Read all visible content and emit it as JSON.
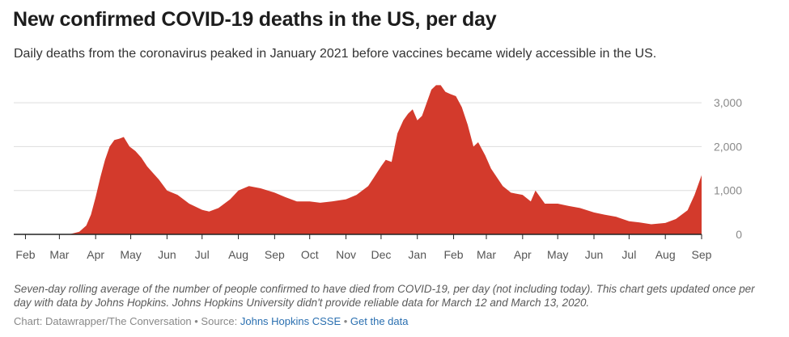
{
  "title": "New confirmed COVID-19 deaths in the US, per day",
  "subtitle": "Daily deaths from the coronavirus peaked in January 2021 before vaccines became widely accessible in the US.",
  "notes": "Seven-day rolling average of the number of people confirmed to have died from COVID-19, per day (not including today). This chart gets updated once per day with data by Johns Hopkins. Johns Hopkins University didn't provide reliable data for March 12 and March 13, 2020.",
  "credit": {
    "prefix": "Chart: Datawrapper/The Conversation • Source: ",
    "source_link": "Johns Hopkins CSSE",
    "separator": " • ",
    "data_link": "Get the data"
  },
  "colors": {
    "area": "#d33a2c",
    "grid": "#dddddd",
    "axis": "#222222",
    "tick_text": "#8a8a8a"
  },
  "chart_data": {
    "type": "area",
    "xlabel": "",
    "ylabel": "",
    "y_ticks": [
      0,
      1000,
      2000,
      3000
    ],
    "y_tick_labels": [
      "0",
      "1,000",
      "2,000",
      "3,000"
    ],
    "ylim": [
      0,
      3500
    ],
    "xlim": [
      "2020-01-22",
      "2021-09-01"
    ],
    "x_ticks": [
      "2020-02-01",
      "2020-03-01",
      "2020-04-01",
      "2020-05-01",
      "2020-06-01",
      "2020-07-01",
      "2020-08-01",
      "2020-09-01",
      "2020-10-01",
      "2020-11-01",
      "2020-12-01",
      "2021-01-01",
      "2021-02-01",
      "2021-03-01",
      "2021-04-01",
      "2021-05-01",
      "2021-06-01",
      "2021-07-01",
      "2021-08-01",
      "2021-09-01"
    ],
    "x_tick_labels": [
      "Feb",
      "Mar",
      "Apr",
      "May",
      "Jun",
      "Jul",
      "Aug",
      "Sep",
      "Oct",
      "Nov",
      "Dec",
      "Jan",
      "Feb",
      "Mar",
      "Apr",
      "May",
      "Jun",
      "Jul",
      "Aug",
      "Sep"
    ],
    "grid": true,
    "y_axis_position": "right",
    "series": [
      {
        "x": [
          "2020-01-22",
          "2020-02-15",
          "2020-03-01",
          "2020-03-10",
          "2020-03-18",
          "2020-03-24",
          "2020-03-28",
          "2020-04-01",
          "2020-04-05",
          "2020-04-09",
          "2020-04-13",
          "2020-04-17",
          "2020-04-21",
          "2020-04-25",
          "2020-04-30",
          "2020-05-05",
          "2020-05-10",
          "2020-05-15",
          "2020-05-20",
          "2020-05-25",
          "2020-06-01",
          "2020-06-10",
          "2020-06-20",
          "2020-07-01",
          "2020-07-07",
          "2020-07-15",
          "2020-07-25",
          "2020-08-01",
          "2020-08-10",
          "2020-08-20",
          "2020-09-01",
          "2020-09-10",
          "2020-09-20",
          "2020-10-01",
          "2020-10-10",
          "2020-10-20",
          "2020-11-01",
          "2020-11-10",
          "2020-11-20",
          "2020-11-25",
          "2020-12-01",
          "2020-12-05",
          "2020-12-10",
          "2020-12-15",
          "2020-12-20",
          "2020-12-24",
          "2020-12-28",
          "2021-01-01",
          "2021-01-05",
          "2021-01-09",
          "2021-01-13",
          "2021-01-17",
          "2021-01-21",
          "2021-01-25",
          "2021-01-29",
          "2021-02-03",
          "2021-02-08",
          "2021-02-13",
          "2021-02-18",
          "2021-02-22",
          "2021-02-28",
          "2021-03-05",
          "2021-03-10",
          "2021-03-15",
          "2021-03-22",
          "2021-04-01",
          "2021-04-08",
          "2021-04-12",
          "2021-04-20",
          "2021-05-01",
          "2021-05-10",
          "2021-05-20",
          "2021-06-01",
          "2021-06-10",
          "2021-06-20",
          "2021-07-01",
          "2021-07-10",
          "2021-07-20",
          "2021-08-01",
          "2021-08-10",
          "2021-08-20",
          "2021-08-26",
          "2021-09-01"
        ],
        "y": [
          0,
          0,
          0,
          5,
          60,
          200,
          450,
          850,
          1300,
          1700,
          2000,
          2150,
          2180,
          2220,
          2000,
          1900,
          1750,
          1550,
          1400,
          1250,
          1000,
          900,
          700,
          560,
          520,
          600,
          800,
          1000,
          1100,
          1050,
          950,
          850,
          750,
          750,
          720,
          750,
          800,
          900,
          1100,
          1300,
          1550,
          1700,
          1650,
          2300,
          2600,
          2750,
          2850,
          2600,
          2700,
          3000,
          3300,
          3400,
          3400,
          3250,
          3200,
          3150,
          2900,
          2500,
          2000,
          2100,
          1800,
          1500,
          1300,
          1100,
          950,
          900,
          750,
          1000,
          700,
          700,
          650,
          600,
          500,
          450,
          400,
          300,
          270,
          230,
          260,
          350,
          550,
          900,
          1350
        ]
      }
    ]
  }
}
